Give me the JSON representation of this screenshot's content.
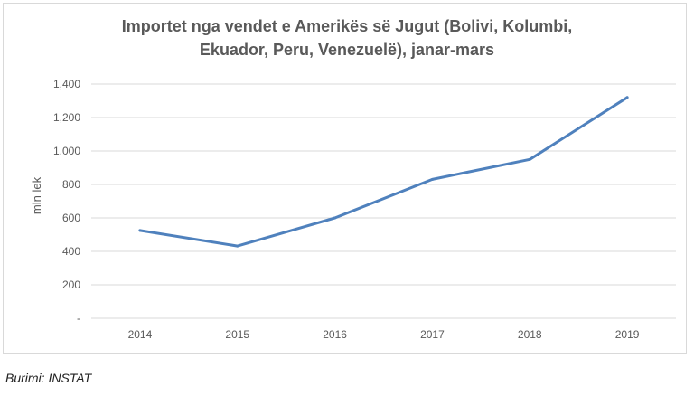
{
  "chart_data": {
    "type": "line",
    "title_lines": [
      "Importet nga vendet e Amerikës së Jugut (Bolivi, Kolumbi,",
      "Ekuador, Peru, Venezuelë), janar-mars"
    ],
    "xlabel": "",
    "ylabel": "mln lek",
    "categories": [
      "2014",
      "2015",
      "2016",
      "2017",
      "2018",
      "2019"
    ],
    "series": [
      {
        "name": "Importet",
        "values": [
          525,
          432,
          600,
          830,
          950,
          1320
        ]
      }
    ],
    "ylim": [
      0,
      1400
    ],
    "yticks": [
      0,
      200,
      400,
      600,
      800,
      1000,
      1200,
      1400
    ],
    "ytick_labels": [
      "-",
      "200",
      "400",
      "600",
      "800",
      "1,000",
      "1,200",
      "1,400"
    ],
    "grid": true,
    "line_color": "#4f81bd",
    "grid_color": "#d9d9d9"
  },
  "source": "Burimi: INSTAT"
}
